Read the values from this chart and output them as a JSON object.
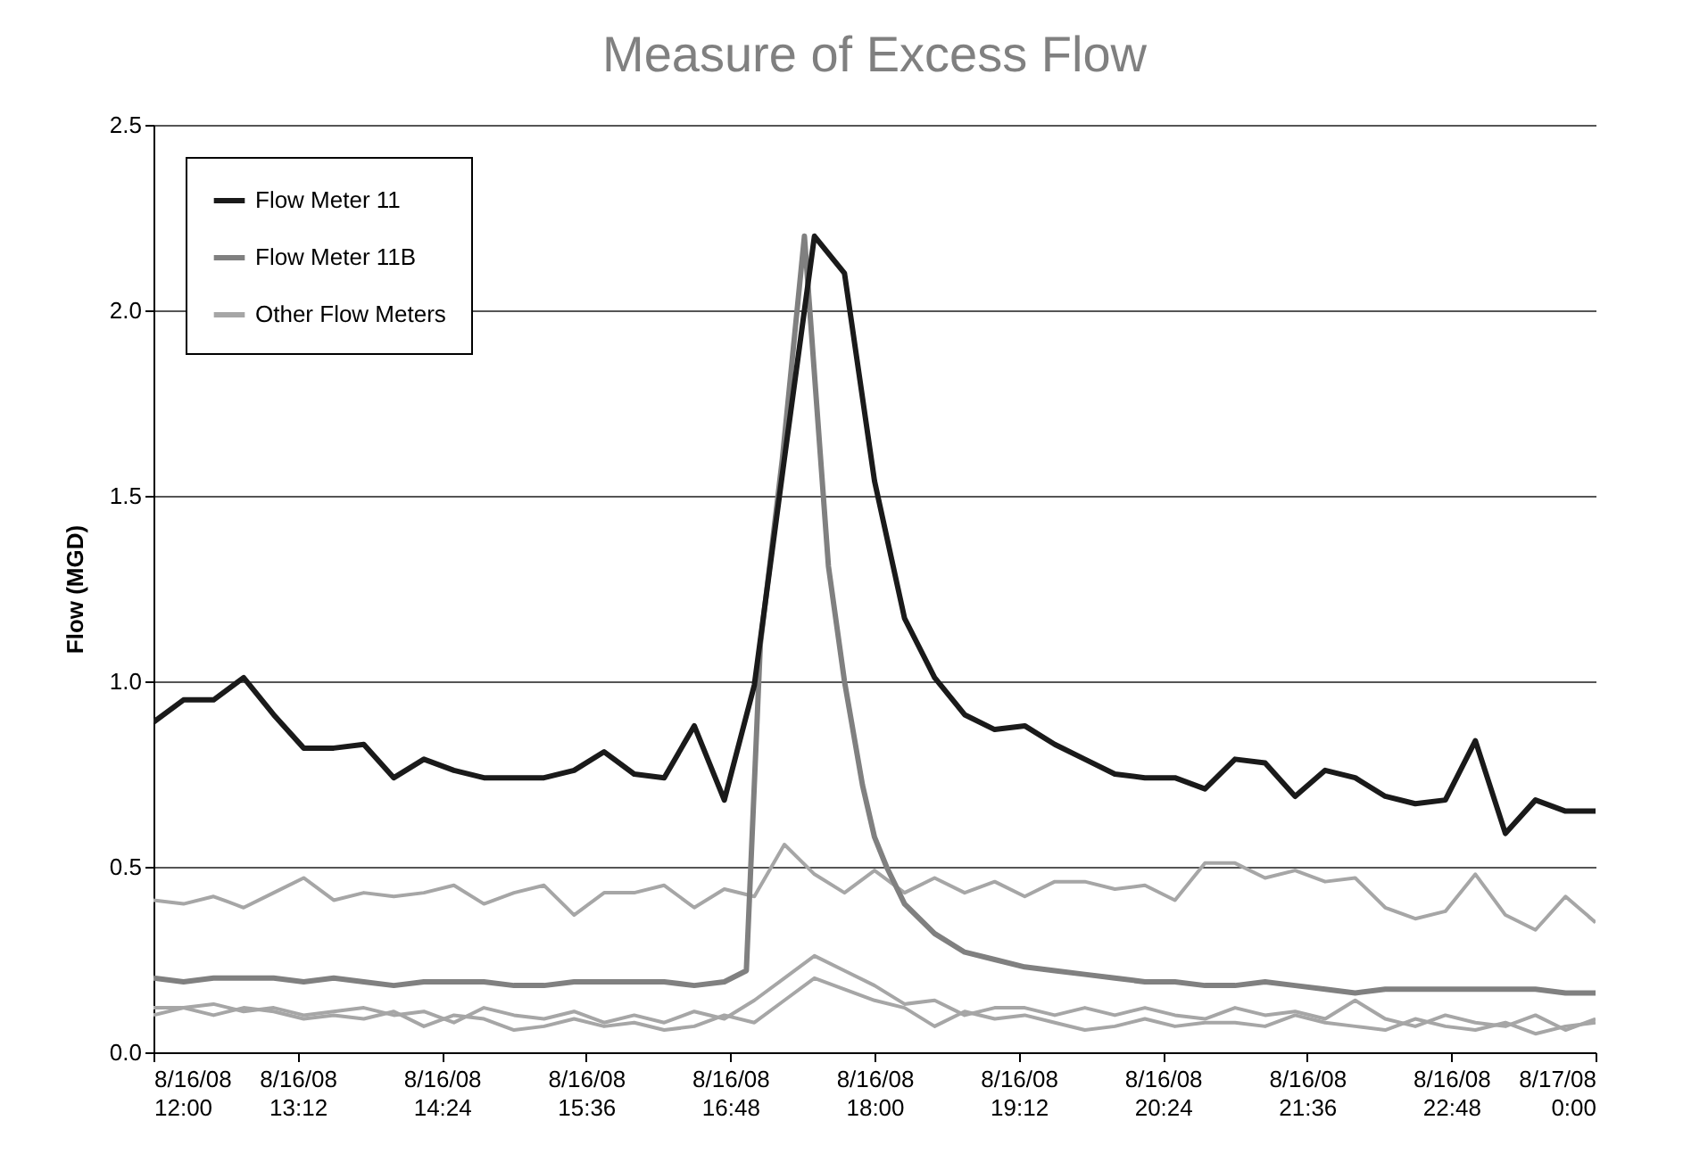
{
  "chart_data": {
    "type": "line",
    "title": "Measure of Excess Flow",
    "ylabel": "Flow (MGD)",
    "x": [
      "--08-16T12:00",
      "--08-16T12:15",
      "--08-16T12:30",
      "--08-16T12:45",
      "--08-16T13:00",
      "--08-16T13:15",
      "--08-16T13:30",
      "--08-16T13:45",
      "--08-16T14:00",
      "--08-16T14:15",
      "--08-16T14:30",
      "--08-16T14:45",
      "--08-16T15:00",
      "--08-16T15:15",
      "--08-16T15:30",
      "--08-16T15:45",
      "--08-16T16:00",
      "--08-16T16:15",
      "--08-16T16:30",
      "--08-16T16:45",
      "--08-16T17:00",
      "--08-16T17:15",
      "--08-16T17:30",
      "--08-16T17:45",
      "--08-16T18:00",
      "--08-16T18:15",
      "--08-16T18:30",
      "--08-16T18:45",
      "--08-16T19:00",
      "--08-16T19:15",
      "--08-16T19:30",
      "--08-16T19:45",
      "--08-16T20:00",
      "--08-16T20:15",
      "--08-16T20:30",
      "--08-16T20:45",
      "--08-16T21:00",
      "--08-16T21:15",
      "--08-16T21:30",
      "--08-16T21:45",
      "--08-16T22:00",
      "--08-16T22:15",
      "--08-16T22:30",
      "--08-16T22:45",
      "--08-16T23:00",
      "--08-16T23:15",
      "--08-16T23:30",
      "--08-16T23:45",
      "--08-17T00:00"
    ],
    "series": [
      {
        "name": "Flow Meter 11",
        "color": "#1a1a1a",
        "values": [
          0.89,
          0.95,
          0.95,
          1.01,
          0.91,
          0.82,
          0.82,
          0.83,
          0.74,
          0.79,
          0.76,
          0.74,
          0.74,
          0.74,
          0.76,
          0.81,
          0.75,
          0.74,
          0.88,
          0.68,
          0.99,
          1.6,
          2.2,
          2.1,
          1.54,
          1.17,
          1.01,
          0.91,
          0.87,
          0.88,
          0.83,
          0.79,
          0.75,
          0.74,
          0.74,
          0.71,
          0.79,
          0.78,
          0.69,
          0.76,
          0.74,
          0.69,
          0.67,
          0.68,
          0.84,
          0.59,
          0.68,
          0.65,
          0.65
        ]
      },
      {
        "name": "Flow Meter 11B",
        "color": "#808080",
        "x": [
          "--08-16T12:00",
          "--08-16T12:15",
          "--08-16T12:30",
          "--08-16T12:45",
          "--08-16T13:00",
          "--08-16T13:15",
          "--08-16T13:30",
          "--08-16T13:45",
          "--08-16T14:00",
          "--08-16T14:15",
          "--08-16T14:30",
          "--08-16T14:45",
          "--08-16T15:00",
          "--08-16T15:15",
          "--08-16T15:30",
          "--08-16T15:45",
          "--08-16T16:00",
          "--08-16T16:15",
          "--08-16T16:30",
          "--08-16T16:45",
          "--08-16T16:56",
          "--08-16T17:03",
          "--08-16T17:14",
          "--08-16T17:25",
          "--08-16T17:37",
          "--08-16T17:45",
          "--08-16T17:54",
          "--08-16T18:00",
          "--08-16T18:06",
          "--08-16T18:15",
          "--08-16T18:30",
          "--08-16T18:45",
          "--08-16T19:00",
          "--08-16T19:15",
          "--08-16T19:30",
          "--08-16T19:45",
          "--08-16T20:00",
          "--08-16T20:15",
          "--08-16T20:30",
          "--08-16T20:45",
          "--08-16T21:00",
          "--08-16T21:15",
          "--08-16T21:30",
          "--08-16T21:45",
          "--08-16T22:00",
          "--08-16T22:15",
          "--08-16T22:30",
          "--08-16T22:45",
          "--08-16T23:00",
          "--08-16T23:15",
          "--08-16T23:30",
          "--08-16T23:45",
          "--08-17T00:00"
        ],
        "values": [
          0.2,
          0.19,
          0.2,
          0.2,
          0.2,
          0.19,
          0.2,
          0.19,
          0.18,
          0.19,
          0.19,
          0.19,
          0.18,
          0.18,
          0.19,
          0.19,
          0.19,
          0.19,
          0.18,
          0.19,
          0.22,
          1.1,
          1.6,
          2.2,
          1.31,
          1.0,
          0.72,
          0.58,
          0.5,
          0.4,
          0.32,
          0.27,
          0.25,
          0.23,
          0.22,
          0.21,
          0.2,
          0.19,
          0.19,
          0.18,
          0.18,
          0.19,
          0.18,
          0.17,
          0.16,
          0.17,
          0.17,
          0.17,
          0.17,
          0.17,
          0.17,
          0.16,
          0.16
        ]
      },
      {
        "name": "Other Flow Meters",
        "color": "#a6a6a6",
        "values": [
          0.41,
          0.4,
          0.42,
          0.39,
          0.43,
          0.47,
          0.41,
          0.43,
          0.42,
          0.43,
          0.45,
          0.4,
          0.43,
          0.45,
          0.37,
          0.43,
          0.43,
          0.45,
          0.39,
          0.44,
          0.42,
          0.56,
          0.48,
          0.43,
          0.49,
          0.43,
          0.47,
          0.43,
          0.46,
          0.42,
          0.46,
          0.46,
          0.44,
          0.45,
          0.41,
          0.51,
          0.51,
          0.47,
          0.49,
          0.46,
          0.47,
          0.39,
          0.36,
          0.38,
          0.48,
          0.37,
          0.33,
          0.42,
          0.35
        ]
      },
      {
        "color": "#a6a6a6",
        "values": [
          0.1,
          0.12,
          0.13,
          0.11,
          0.12,
          0.1,
          0.11,
          0.12,
          0.1,
          0.11,
          0.08,
          0.12,
          0.1,
          0.09,
          0.11,
          0.08,
          0.1,
          0.08,
          0.11,
          0.09,
          0.14,
          0.2,
          0.26,
          0.22,
          0.18,
          0.13,
          0.14,
          0.1,
          0.12,
          0.12,
          0.1,
          0.12,
          0.1,
          0.12,
          0.1,
          0.09,
          0.12,
          0.1,
          0.11,
          0.09,
          0.14,
          0.09,
          0.07,
          0.1,
          0.08,
          0.07,
          0.1,
          0.06,
          0.09
        ]
      },
      {
        "color": "#a6a6a6",
        "values": [
          0.12,
          0.12,
          0.1,
          0.12,
          0.11,
          0.09,
          0.1,
          0.09,
          0.11,
          0.07,
          0.1,
          0.09,
          0.06,
          0.07,
          0.09,
          0.07,
          0.08,
          0.06,
          0.07,
          0.1,
          0.08,
          0.14,
          0.2,
          0.17,
          0.14,
          0.12,
          0.07,
          0.11,
          0.09,
          0.1,
          0.08,
          0.06,
          0.07,
          0.09,
          0.07,
          0.08,
          0.08,
          0.07,
          0.1,
          0.08,
          0.07,
          0.06,
          0.09,
          0.07,
          0.06,
          0.08,
          0.05,
          0.07,
          0.08
        ]
      }
    ],
    "xlim": [
      "--08-16T12:00",
      "--08-17T00:00"
    ],
    "xticks": [
      {
        "value": "--08-16T12:00",
        "label": "8/16/08 12:00"
      },
      {
        "value": "--08-16T13:12",
        "label": "8/16/08 13:12"
      },
      {
        "value": "--08-16T14:24",
        "label": "8/16/08 14:24"
      },
      {
        "value": "--08-16T15:36",
        "label": "8/16/08 15:36"
      },
      {
        "value": "--08-16T16:48",
        "label": "8/16/08 16:48"
      },
      {
        "value": "--08-16T18:00",
        "label": "8/16/08 18:00"
      },
      {
        "value": "--08-16T19:12",
        "label": "8/16/08 19:12"
      },
      {
        "value": "--08-16T20:24",
        "label": "8/16/08 20:24"
      },
      {
        "value": "--08-16T21:36",
        "label": "8/16/08 21:36"
      },
      {
        "value": "--08-16T22:48",
        "label": "8/16/08 22:48"
      },
      {
        "value": "--08-17T00:00",
        "label": "8/17/08 0:00"
      }
    ],
    "ylim": [
      0,
      2.5
    ],
    "yticks": [
      {
        "value": 0,
        "label": "0.0"
      },
      {
        "value": 0.5,
        "label": "0.5"
      },
      {
        "value": 1,
        "label": "1.0"
      },
      {
        "value": 1.5,
        "label": "1.5"
      },
      {
        "value": 2,
        "label": "2.0"
      },
      {
        "value": 2.5,
        "label": "2.5"
      }
    ],
    "grid": "y",
    "legend": "top left",
    "marker": "none",
    "line_style": "solid"
  }
}
